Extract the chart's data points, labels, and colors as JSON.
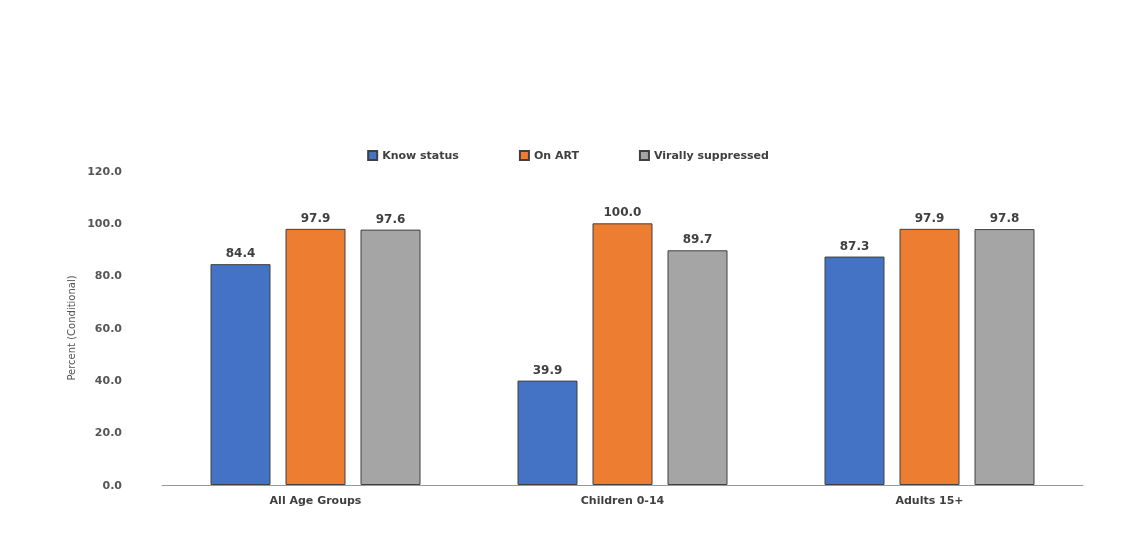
{
  "chart_data": {
    "type": "bar",
    "ylabel": "Percent (Conditional)",
    "categories": [
      "All Age Groups",
      "Children 0-14",
      "Adults 15+"
    ],
    "series": [
      {
        "name": "Know status",
        "color": "#4472c4",
        "values": [
          84.4,
          39.9,
          87.3
        ],
        "value_labels": [
          "84.4",
          "39.9",
          "87.3"
        ]
      },
      {
        "name": "On ART",
        "color": "#ed7d31",
        "values": [
          97.9,
          100,
          97.9
        ],
        "value_labels": [
          "97.9",
          "100.0",
          "97.9"
        ]
      },
      {
        "name": "Virally suppressed",
        "color": "#a5a5a5",
        "values": [
          97.6,
          89.7,
          97.8
        ],
        "value_labels": [
          "97.6",
          "89.7",
          "97.8"
        ]
      }
    ],
    "ylim": [
      0,
      120
    ],
    "yticks": [
      {
        "value": 0,
        "label": "0.0"
      },
      {
        "value": 20,
        "label": "20.0"
      },
      {
        "value": 40,
        "label": "40.0"
      },
      {
        "value": 60,
        "label": "60.0"
      },
      {
        "value": 80,
        "label": "80.0"
      },
      {
        "value": 100,
        "label": "100.0"
      },
      {
        "value": 120,
        "label": "120.0"
      }
    ],
    "grid": false,
    "legend": "top"
  }
}
